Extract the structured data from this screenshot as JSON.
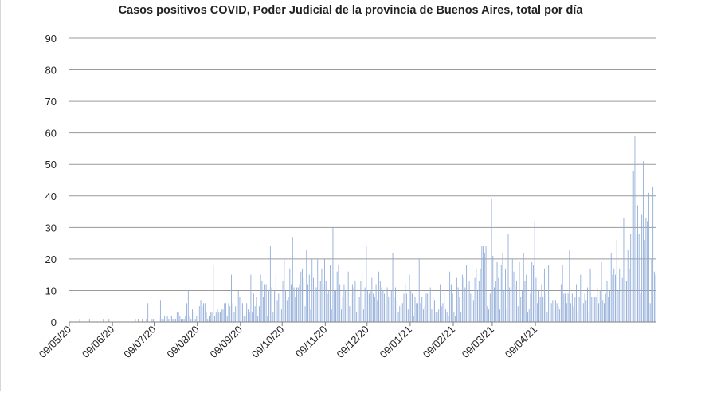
{
  "chart_data": {
    "type": "bar",
    "title": "Casos positivos COVID, Poder Judicial de la provincia de Buenos Aires, total por día",
    "xlabel": "",
    "ylabel": "",
    "ylim": [
      0,
      90
    ],
    "yticks": [
      "0",
      "10",
      "20",
      "30",
      "40",
      "50",
      "60",
      "70",
      "80",
      "90"
    ],
    "xtick_labels": [
      "09/05/20",
      "09/06/20",
      "09/07/20",
      "09/08/20",
      "09/09/20",
      "09/10/20",
      "09/11/20",
      "09/12/20",
      "09/01/21",
      "09/02/21",
      "09/03/21",
      "09/04/21"
    ],
    "grid": true,
    "legend": "none",
    "bar_color": "#8eaad8",
    "start_date": "2020-05-09",
    "values": [
      0,
      0,
      0,
      0,
      0,
      0,
      0,
      1,
      0,
      0,
      0,
      0,
      0,
      0,
      1,
      0,
      0,
      0,
      0,
      0,
      0,
      0,
      0,
      0,
      1,
      0,
      0,
      0,
      1,
      0,
      0,
      0,
      0,
      1,
      0,
      0,
      0,
      0,
      0,
      0,
      0,
      0,
      0,
      0,
      0,
      0,
      0,
      1,
      0,
      1,
      0,
      0,
      1,
      0,
      0,
      1,
      6,
      0,
      0,
      1,
      1,
      1,
      0,
      0,
      2,
      7,
      1,
      1,
      2,
      1,
      2,
      1,
      2,
      2,
      1,
      1,
      1,
      3,
      3,
      2,
      1,
      1,
      1,
      2,
      6,
      10,
      2,
      1,
      4,
      3,
      1,
      2,
      4,
      5,
      7,
      5,
      6,
      6,
      3,
      1,
      2,
      3,
      3,
      18,
      2,
      3,
      4,
      3,
      3,
      4,
      4,
      6,
      6,
      2,
      6,
      5,
      15,
      6,
      3,
      5,
      11,
      10,
      8,
      7,
      6,
      2,
      2,
      6,
      4,
      3,
      15,
      3,
      9,
      5,
      8,
      2,
      5,
      15,
      13,
      8,
      12,
      12,
      2,
      10,
      24,
      11,
      3,
      10,
      15,
      7,
      9,
      14,
      4,
      13,
      20,
      10,
      7,
      8,
      17,
      12,
      27,
      11,
      8,
      11,
      11,
      12,
      16,
      17,
      14,
      5,
      23,
      12,
      15,
      4,
      20,
      14,
      10,
      11,
      20,
      6,
      13,
      17,
      12,
      20,
      13,
      9,
      10,
      18,
      4,
      30,
      10,
      10,
      16,
      18,
      12,
      4,
      8,
      12,
      10,
      6,
      16,
      5,
      9,
      12,
      11,
      13,
      3,
      11,
      8,
      13,
      16,
      4,
      11,
      24,
      10,
      9,
      10,
      14,
      9,
      8,
      12,
      7,
      16,
      13,
      11,
      10,
      9,
      6,
      11,
      8,
      15,
      10,
      22,
      8,
      11,
      7,
      3,
      5,
      10,
      6,
      9,
      12,
      9,
      4,
      15,
      10,
      9,
      2,
      8,
      6,
      6,
      20,
      6,
      8,
      4,
      5,
      9,
      9,
      11,
      11,
      4,
      8,
      7,
      3,
      3,
      4,
      12,
      5,
      6,
      9,
      4,
      3,
      2,
      16,
      12,
      9,
      3,
      2,
      14,
      11,
      8,
      3,
      15,
      14,
      11,
      18,
      12,
      13,
      9,
      18,
      7,
      14,
      17,
      10,
      13,
      17,
      24,
      24,
      22,
      24,
      5,
      4,
      9,
      39,
      21,
      11,
      13,
      19,
      14,
      4,
      18,
      22,
      10,
      17,
      4,
      28,
      11,
      41,
      20,
      16,
      12,
      13,
      5,
      19,
      8,
      10,
      22,
      13,
      15,
      3,
      4,
      9,
      19,
      18,
      32,
      14,
      6,
      10,
      8,
      12,
      8,
      17,
      9,
      3,
      18,
      8,
      6,
      7,
      4,
      7,
      6,
      5,
      4,
      12,
      18,
      9,
      9,
      6,
      9,
      23,
      6,
      9,
      5,
      8,
      12,
      3,
      8,
      15,
      6,
      6,
      9,
      7,
      11,
      3,
      17,
      8,
      8,
      8,
      8,
      11,
      6,
      10,
      19,
      7,
      6,
      9,
      13,
      8,
      10,
      22,
      15,
      17,
      15,
      26,
      10,
      17,
      43,
      14,
      33,
      13,
      13,
      23,
      17,
      28,
      78,
      48,
      59,
      28,
      37,
      28,
      9,
      34,
      51,
      26,
      33,
      32,
      41,
      6,
      20,
      43,
      16,
      15
    ]
  }
}
